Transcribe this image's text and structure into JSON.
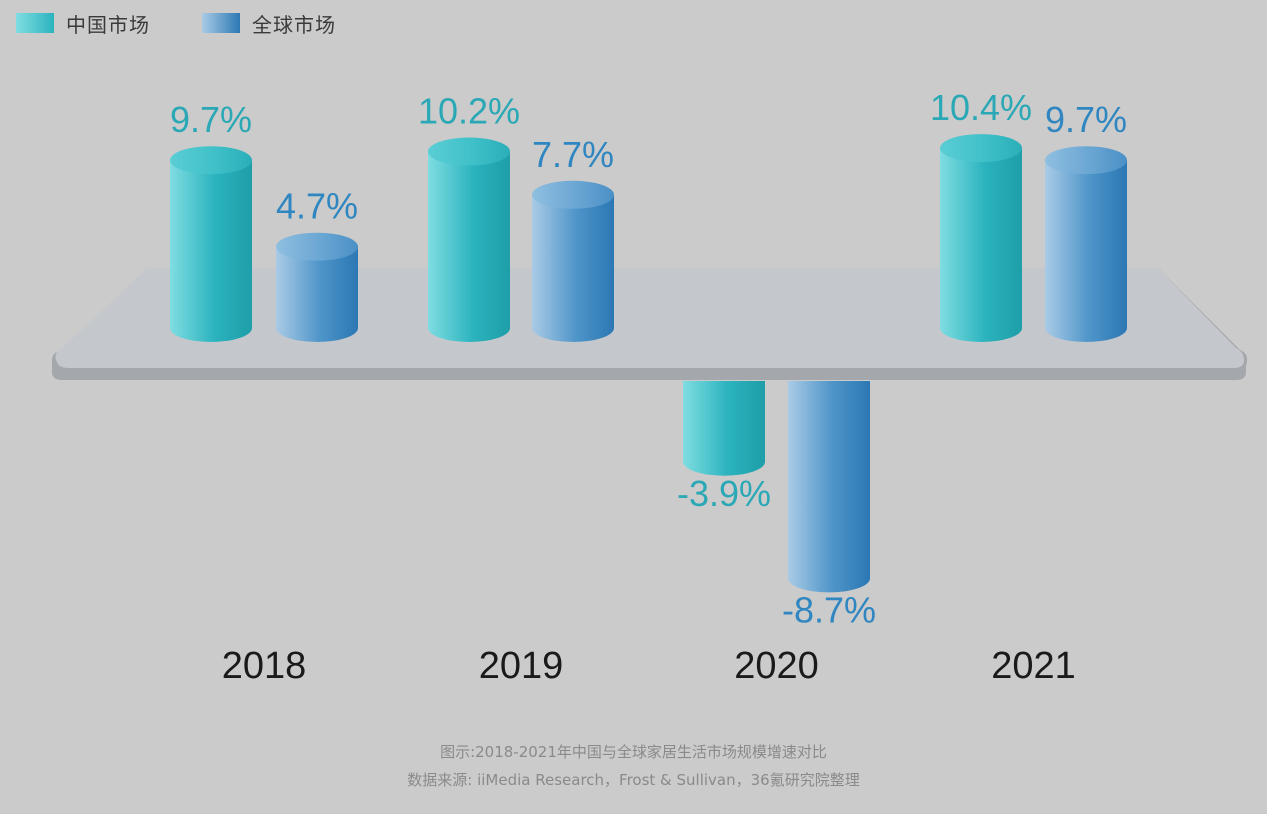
{
  "legend": [
    {
      "label": "中国市场",
      "color": "#2bb3be"
    },
    {
      "label": "全球市场",
      "color": "#3a86bf"
    }
  ],
  "chart_data": {
    "type": "bar",
    "categories": [
      "2018",
      "2019",
      "2020",
      "2021"
    ],
    "series": [
      {
        "name": "中国市场",
        "values": [
          9.7,
          10.2,
          -3.9,
          10.4
        ],
        "labels": [
          "9.7%",
          "10.2%",
          "-3.9%",
          "10.4%"
        ]
      },
      {
        "name": "全球市场",
        "values": [
          4.7,
          7.7,
          -8.7,
          9.7
        ],
        "labels": [
          "4.7%",
          "7.7%",
          "-8.7%",
          "9.7%"
        ]
      }
    ],
    "title": "",
    "xlabel": "",
    "ylabel": "",
    "grid": false,
    "legend_position": "top-left"
  },
  "caption": {
    "line1": "图示:2018-2021年中国与全球家居生活市场规模增速对比",
    "line2": "数据来源: iiMedia Research，Frost & Sullivan，36氪研究院整理"
  },
  "colors": {
    "china_light": "#7fdde2",
    "china_mid": "#2bb3be",
    "china_dark": "#1e9ea8",
    "global_light": "#a9cbe6",
    "global_mid": "#4d94c8",
    "global_dark": "#2c78b4",
    "platform_top": "#c4c7cc",
    "platform_edge": "#a4a7ac",
    "label_china": "#2aa8b5",
    "label_global": "#2f86c0",
    "year": "#1a1a1a"
  }
}
